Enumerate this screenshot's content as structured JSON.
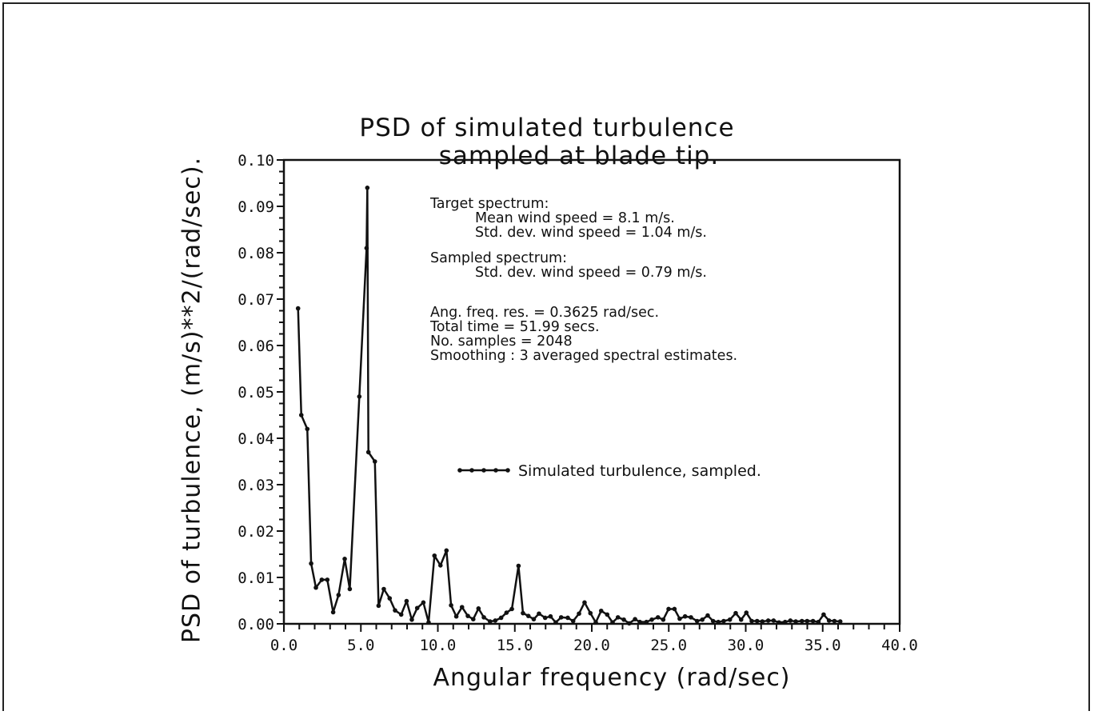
{
  "chart_data": {
    "type": "line",
    "title": [
      "PSD of simulated turbulence",
      "sampled at blade tip."
    ],
    "xlabel": "Angular frequency (rad/sec)",
    "ylabel": "PSD of turbulence, (m/s)**2/(rad/sec).",
    "xlim": [
      0,
      40
    ],
    "ylim": [
      0,
      0.1
    ],
    "xticks": [
      "0.0",
      "5.0",
      "10.0",
      "15.0",
      "20.0",
      "25.0",
      "30.0",
      "35.0",
      "40.0"
    ],
    "yticks": [
      "0.00",
      "0.01",
      "0.02",
      "0.03",
      "0.04",
      "0.05",
      "0.06",
      "0.07",
      "0.08",
      "0.09",
      "0.10"
    ],
    "grid": false,
    "annotations": {
      "target_header": "Target spectrum:",
      "target_mean": "Mean wind speed = 8.1 m/s.",
      "target_std": "Std. dev. wind speed = 1.04 m/s.",
      "sampled_header": "Sampled spectrum:",
      "sampled_std": "Std. dev. wind speed = 0.79 m/s.",
      "freq_res": "Ang. freq. res. = 0.3625 rad/sec.",
      "total_time": "Total time = 51.99 secs.",
      "samples": "No. samples = 2048",
      "smoothing": "Smoothing : 3 averaged spectral estimates."
    },
    "series": [
      {
        "name": "Simulated turbulence, sampled.",
        "marker": "dot",
        "color": "#111111",
        "x": [
          0.92,
          1.13,
          1.52,
          1.77,
          2.08,
          2.46,
          2.82,
          3.2,
          3.55,
          3.95,
          4.28,
          4.9,
          5.37,
          5.42,
          5.49,
          5.91,
          6.15,
          6.49,
          6.87,
          7.22,
          7.62,
          7.97,
          8.31,
          8.66,
          9.06,
          9.4,
          9.78,
          10.17,
          10.56,
          10.86,
          11.2,
          11.57,
          11.95,
          12.3,
          12.64,
          12.99,
          13.39,
          13.73,
          14.11,
          14.46,
          14.81,
          15.24,
          15.53,
          15.88,
          16.23,
          16.57,
          16.97,
          17.32,
          17.66,
          18.01,
          18.44,
          18.79,
          19.17,
          19.53,
          19.91,
          20.26,
          20.61,
          21.0,
          21.35,
          21.7,
          22.08,
          22.43,
          22.81,
          23.12,
          23.55,
          23.9,
          24.3,
          24.64,
          24.99,
          25.37,
          25.71,
          26.06,
          26.44,
          26.84,
          27.18,
          27.53,
          27.88,
          28.22,
          28.57,
          28.97,
          29.35,
          29.7,
          30.04,
          30.39,
          30.74,
          31.08,
          31.46,
          31.81,
          32.16,
          32.56,
          32.9,
          33.25,
          33.65,
          33.99,
          34.37,
          34.72,
          35.06,
          35.41,
          35.76,
          36.14
        ],
        "y": [
          0.068,
          0.045,
          0.042,
          0.013,
          0.0078,
          0.0095,
          0.0095,
          0.0025,
          0.0062,
          0.014,
          0.0075,
          0.049,
          0.081,
          0.094,
          0.037,
          0.035,
          0.0039,
          0.0075,
          0.0055,
          0.0029,
          0.002,
          0.0049,
          0.0009,
          0.0034,
          0.0046,
          0.0003,
          0.0147,
          0.0126,
          0.0158,
          0.004,
          0.0016,
          0.0036,
          0.0017,
          0.001,
          0.0033,
          0.0014,
          0.0005,
          0.0007,
          0.0013,
          0.0024,
          0.0032,
          0.0125,
          0.0023,
          0.0017,
          0.001,
          0.0022,
          0.0013,
          0.0016,
          0.0003,
          0.0014,
          0.0013,
          0.0006,
          0.0022,
          0.0046,
          0.0023,
          0.0003,
          0.0028,
          0.002,
          0.0003,
          0.0014,
          0.0009,
          0.0001,
          0.001,
          0.0004,
          0.0004,
          0.0009,
          0.0014,
          0.0009,
          0.0032,
          0.0032,
          0.0011,
          0.0016,
          0.0014,
          0.0006,
          0.0009,
          0.0018,
          0.0006,
          0.0004,
          0.0006,
          0.0009,
          0.0023,
          0.0009,
          0.0024,
          0.0006,
          0.0006,
          0.0005,
          0.0007,
          0.0007,
          0.0003,
          0.0004,
          0.0007,
          0.0005,
          0.0006,
          0.0006,
          0.0006,
          0.0004,
          0.002,
          0.0007,
          0.0006,
          0.0005
        ]
      }
    ],
    "legend": "inside-center"
  }
}
